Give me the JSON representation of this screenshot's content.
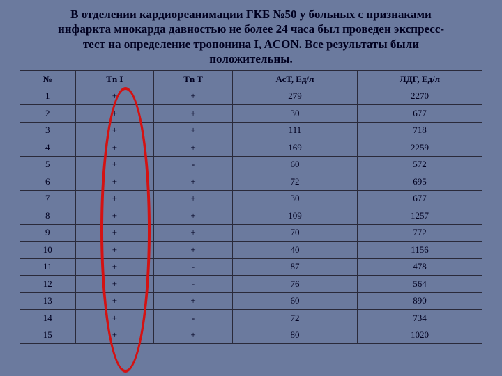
{
  "title_lines": [
    "В отделении кардиореанимации ГКБ №50  у больных с признаками",
    "инфаркта миокарда давностью не более 24 часа был проведен экспресс-",
    "тест  на определение тропонина I, ACON. Все результаты были",
    "положительны."
  ],
  "table": {
    "columns": [
      "№",
      "Tn I",
      "Tn T",
      "АсТ, Ед/л",
      "ЛДГ, Ед/л"
    ],
    "rows": [
      [
        "1",
        "+",
        "+",
        "279",
        "2270"
      ],
      [
        "2",
        "+",
        "+",
        "30",
        "677"
      ],
      [
        "3",
        "+",
        "+",
        "111",
        "718"
      ],
      [
        "4",
        "+",
        "+",
        "169",
        "2259"
      ],
      [
        "5",
        "+",
        "-",
        "60",
        "572"
      ],
      [
        "6",
        "+",
        "+",
        "72",
        "695"
      ],
      [
        "7",
        "+",
        "+",
        "30",
        "677"
      ],
      [
        "8",
        "+",
        "+",
        "109",
        "1257"
      ],
      [
        "9",
        "+",
        "+",
        "70",
        "772"
      ],
      [
        "10",
        "+",
        "+",
        "40",
        "1156"
      ],
      [
        "11",
        "+",
        "-",
        "87",
        "478"
      ],
      [
        "12",
        "+",
        "-",
        "76",
        "564"
      ],
      [
        "13",
        "+",
        "+",
        "60",
        "890"
      ],
      [
        "14",
        "+",
        "-",
        "72",
        "734"
      ],
      [
        "15",
        "+",
        "+",
        "80",
        "1020"
      ]
    ],
    "header_bg": "#6b7a9e",
    "cell_bg": "#6b7a9e",
    "border_color": "#2a2a3a",
    "text_color": "#000020",
    "font_size": 13
  },
  "background_color": "#6b7a9e",
  "annotation": {
    "type": "ellipse",
    "stroke": "#d41212",
    "stroke_width": 4,
    "target_column_index": 1
  }
}
